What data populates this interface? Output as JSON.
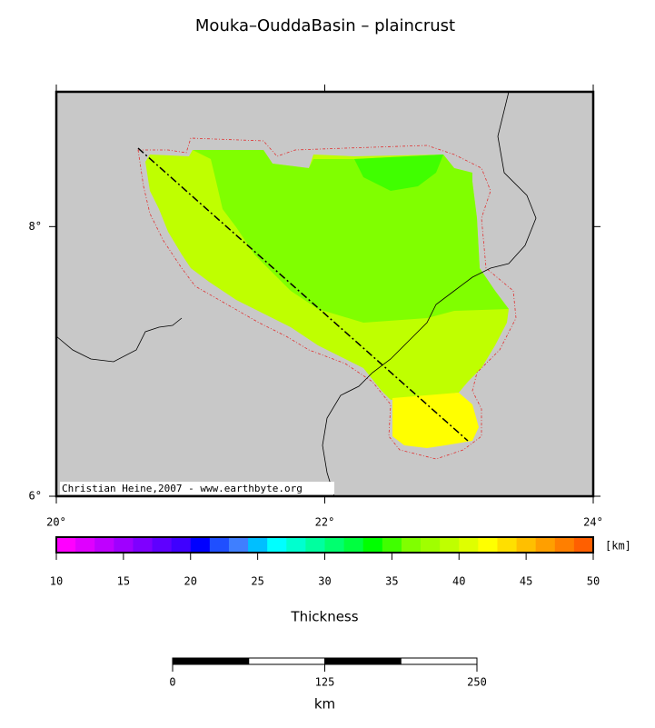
{
  "title": "Mouka–OuddaBasin – plaincrust",
  "map": {
    "xlim": [
      20,
      24
    ],
    "ylim": [
      6,
      9
    ],
    "xticks": [
      {
        "value": 20,
        "label": "20°"
      },
      {
        "value": 22,
        "label": "22°"
      },
      {
        "value": 24,
        "label": "24°"
      }
    ],
    "yticks": [
      {
        "value": 6,
        "label": "6°"
      },
      {
        "value": 8,
        "label": "8°"
      }
    ],
    "credit": "Christian Heine,2007 - www.earthbyte.org"
  },
  "colorbar": {
    "lim": [
      10,
      50
    ],
    "ticks": [
      10,
      15,
      20,
      25,
      30,
      35,
      40,
      45,
      50
    ],
    "unit": "[km]",
    "label": "Thickness",
    "colors": [
      "#ff00ff",
      "#df00ff",
      "#bf00ff",
      "#9f00ff",
      "#7f00ff",
      "#5f00ff",
      "#3f00ff",
      "#0000ff",
      "#1f4fff",
      "#3f7fff",
      "#00bfff",
      "#00ffff",
      "#00ffcf",
      "#00ff9f",
      "#00ff6f",
      "#00ff3f",
      "#00ff00",
      "#40ff00",
      "#80ff00",
      "#a0ff00",
      "#bfff00",
      "#dfff00",
      "#ffff00",
      "#ffdf00",
      "#ffbf00",
      "#ff9f00",
      "#ff7f00",
      "#ff5f00"
    ]
  },
  "scalebar": {
    "lim": [
      0,
      250
    ],
    "ticks": [
      0,
      125,
      250
    ],
    "unit": "km"
  }
}
